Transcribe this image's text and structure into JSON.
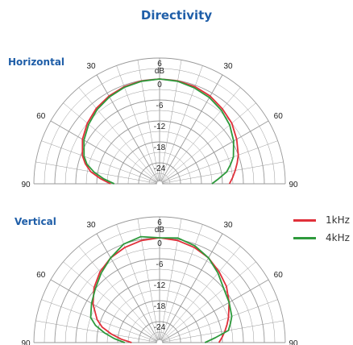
{
  "title": "Directivity",
  "legend": [
    {
      "name": "1kHz",
      "color": "#e0303a"
    },
    {
      "name": "4kHz",
      "color": "#2e9a3c"
    }
  ],
  "colors": {
    "grid": "#999999",
    "title": "#1f5ea8"
  },
  "chart_data": [
    {
      "type": "polar-line",
      "panel": "Horizontal",
      "title": "Horizontal",
      "radial_unit": "dB",
      "radial_ticks": [
        6,
        0,
        -6,
        -12,
        -18,
        -24
      ],
      "rlim": [
        -30,
        6
      ],
      "angle_ticks": [
        -90,
        -60,
        -30,
        30,
        60,
        90
      ],
      "angles": [
        -90,
        -85,
        -80,
        -75,
        -70,
        -60,
        -50,
        -40,
        -30,
        -20,
        -10,
        0,
        10,
        20,
        30,
        40,
        50,
        60,
        70,
        75,
        80,
        85,
        90
      ],
      "series": [
        {
          "name": "1kHz",
          "values": [
            -16,
            -13,
            -10,
            -8,
            -6.5,
            -4.5,
            -3,
            -1.8,
            -1,
            -0.4,
            -0.1,
            0,
            -0.1,
            -0.4,
            -1,
            -2,
            -3,
            -4.5,
            -6,
            -7,
            -8,
            -9,
            -10
          ]
        },
        {
          "name": "4kHz",
          "values": [
            -17,
            -14,
            -11,
            -8.5,
            -7,
            -5,
            -3.5,
            -2.2,
            -1.3,
            -0.6,
            -0.2,
            0,
            -0.2,
            -0.8,
            -1.5,
            -2.5,
            -3.8,
            -5.5,
            -7.5,
            -9,
            -10.5,
            -13,
            -15
          ]
        }
      ]
    },
    {
      "type": "polar-line",
      "panel": "Vertical",
      "title": "Vertical",
      "radial_unit": "dB",
      "radial_ticks": [
        6,
        0,
        -6,
        -12,
        -18,
        -24
      ],
      "rlim": [
        -30,
        6
      ],
      "angle_ticks": [
        -90,
        -60,
        -30,
        30,
        60,
        90
      ],
      "angles": [
        -90,
        -85,
        -80,
        -75,
        -70,
        -60,
        -50,
        -40,
        -30,
        -20,
        -10,
        0,
        10,
        20,
        30,
        40,
        50,
        60,
        70,
        75,
        80,
        85,
        90
      ],
      "series": [
        {
          "name": "1kHz",
          "values": [
            -22,
            -19,
            -16,
            -13,
            -11,
            -8,
            -5.5,
            -3.5,
            -2,
            -1,
            -0.3,
            0,
            -0.3,
            -1,
            -2,
            -3.5,
            -5,
            -7,
            -9,
            -10,
            -11,
            -12,
            -13
          ]
        },
        {
          "name": "4kHz",
          "values": [
            -20,
            -17,
            -14,
            -11,
            -9,
            -7.5,
            -6,
            -4,
            -2,
            0,
            0.8,
            0,
            0.4,
            -0.5,
            -2,
            -4,
            -6,
            -7,
            -8,
            -9,
            -10,
            -14,
            -17
          ]
        }
      ]
    }
  ]
}
